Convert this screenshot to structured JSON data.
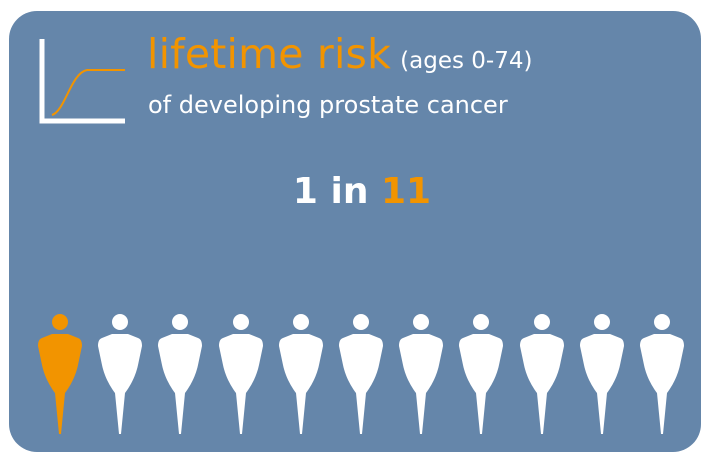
{
  "header": {
    "title_main": "lifetime risk",
    "title_ages": "(ages 0-74)",
    "subtitle": "of developing prostate cancer"
  },
  "ratio": {
    "prefix": "1",
    "connector": "in",
    "denominator": "11"
  },
  "icons": {
    "curve": "risk-curve-icon",
    "person": "person-icon"
  },
  "people": {
    "count": 11,
    "highlighted": 1
  },
  "colors": {
    "background": "#6586AA",
    "accent": "#F29400",
    "text": "#FFFFFF"
  }
}
